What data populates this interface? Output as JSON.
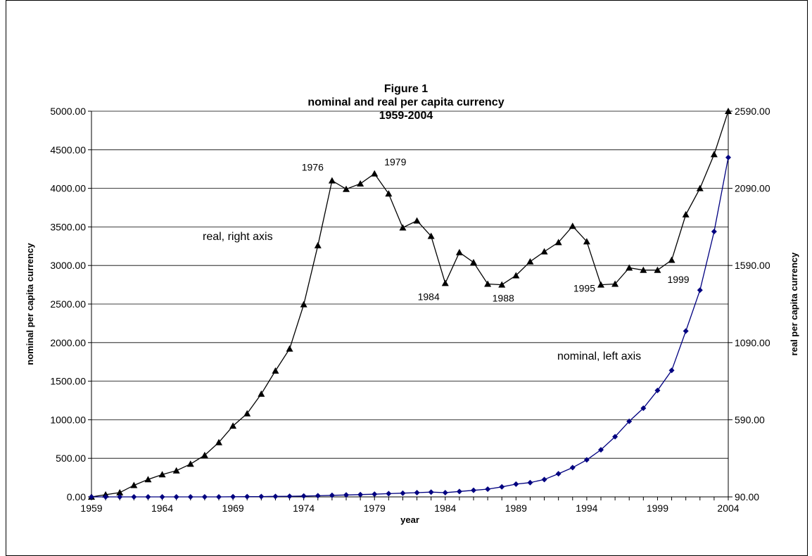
{
  "chart_data": {
    "type": "line",
    "title_lines": [
      "Figure 1",
      "nominal and real per capita currency",
      "1959-2004"
    ],
    "xlabel": "year",
    "ylabel_left": "nominal per capita currency",
    "ylabel_right": "real per capita currency",
    "xlim": [
      1959,
      2004
    ],
    "x_ticks": [
      "1959",
      "1964",
      "1969",
      "1974",
      "1979",
      "1984",
      "1989",
      "1994",
      "1999",
      "2004"
    ],
    "ylim_left": [
      0,
      5000
    ],
    "y_ticks_left": [
      "0.00",
      "500.00",
      "1000.00",
      "1500.00",
      "2000.00",
      "2500.00",
      "3000.00",
      "3500.00",
      "4000.00",
      "4500.00",
      "5000.00"
    ],
    "ylim_right": [
      90,
      2590
    ],
    "y_ticks_right": [
      "90.00",
      "590.00",
      "1090.00",
      "1590.00",
      "2090.00",
      "2590.00"
    ],
    "grid": true,
    "x": [
      1959,
      1960,
      1961,
      1962,
      1963,
      1964,
      1965,
      1966,
      1967,
      1968,
      1969,
      1970,
      1971,
      1972,
      1973,
      1974,
      1975,
      1976,
      1977,
      1978,
      1979,
      1980,
      1981,
      1982,
      1983,
      1984,
      1985,
      1986,
      1987,
      1988,
      1989,
      1990,
      1991,
      1992,
      1993,
      1994,
      1995,
      1996,
      1997,
      1998,
      1999,
      2000,
      2001,
      2002,
      2003,
      2004
    ],
    "series": [
      {
        "name": "real, right axis",
        "axis": "right",
        "color": "#000000",
        "marker": "triangle",
        "values": [
          90,
          104,
          118,
          165,
          203,
          235,
          260,
          303,
          360,
          443,
          550,
          630,
          757,
          907,
          1050,
          1337,
          1720,
          2140,
          2085,
          2120,
          2185,
          2055,
          1835,
          1880,
          1780,
          1475,
          1675,
          1610,
          1470,
          1465,
          1525,
          1615,
          1680,
          1740,
          1845,
          1745,
          1465,
          1470,
          1575,
          1560,
          1560,
          1625,
          1920,
          2090,
          2310,
          2590
        ]
      },
      {
        "name": "nominal, left axis",
        "axis": "left",
        "color": "#000080",
        "marker": "diamond",
        "values": [
          0,
          0,
          0,
          0,
          0,
          0,
          0,
          0,
          0,
          0,
          2,
          3,
          4,
          6,
          8,
          11,
          15,
          20,
          25,
          30,
          35,
          42,
          48,
          55,
          62,
          55,
          70,
          85,
          100,
          130,
          165,
          185,
          225,
          300,
          380,
          480,
          610,
          780,
          980,
          1150,
          1380,
          1640,
          2150,
          2680,
          3440,
          4400
        ]
      }
    ],
    "annotations": [
      {
        "text": "1976",
        "x": 1976,
        "series": 0
      },
      {
        "text": "1979",
        "x": 1979,
        "series": 0
      },
      {
        "text": "1984",
        "x": 1984,
        "series": 0
      },
      {
        "text": "1988",
        "x": 1988,
        "series": 0
      },
      {
        "text": "1995",
        "x": 1995,
        "series": 0
      },
      {
        "text": "1999",
        "x": 1999,
        "series": 0
      }
    ]
  }
}
